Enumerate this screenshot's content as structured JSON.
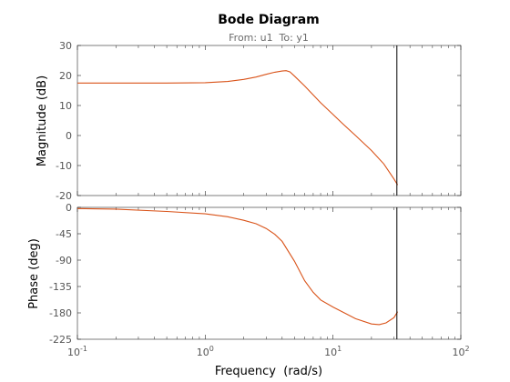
{
  "chart_data": [
    {
      "type": "line",
      "panel": "magnitude",
      "title": "Bode Diagram",
      "subtitle": "From: u1  To: y1",
      "ylabel": "Magnitude (dB)",
      "xlabel": "",
      "xscale": "log",
      "xlim": [
        0.1,
        100
      ],
      "ylim": [
        -20,
        30
      ],
      "yticks": [
        "30",
        "20",
        "10",
        "0",
        "-10",
        "-20"
      ],
      "grid": false,
      "marker_x": 31.6,
      "series": [
        {
          "color": "#d95319",
          "x": [
            0.1,
            0.2,
            0.5,
            1,
            1.5,
            2,
            2.5,
            3,
            3.5,
            4,
            4.3,
            4.6,
            5,
            6,
            7,
            8,
            10,
            12,
            15,
            20,
            25,
            30,
            32
          ],
          "values": [
            17.5,
            17.5,
            17.5,
            17.6,
            18.0,
            18.7,
            19.5,
            20.4,
            21.1,
            21.5,
            21.6,
            21.2,
            19.8,
            16.5,
            13.5,
            10.9,
            7.0,
            3.8,
            0.0,
            -5.0,
            -9.5,
            -14.5,
            -16.5
          ]
        }
      ]
    },
    {
      "type": "line",
      "panel": "phase",
      "ylabel": "Phase (deg)",
      "xlabel": "Frequency  (rad/s)",
      "xscale": "log",
      "xlim": [
        0.1,
        100
      ],
      "ylim": [
        -225,
        0
      ],
      "yticks": [
        "0",
        "-45",
        "-90",
        "-135",
        "-180",
        "-225"
      ],
      "xticks": [
        {
          "base": "10",
          "exp": "-1"
        },
        {
          "base": "10",
          "exp": "0"
        },
        {
          "base": "10",
          "exp": "1"
        },
        {
          "base": "10",
          "exp": "2"
        }
      ],
      "grid": false,
      "marker_x": 31.6,
      "series": [
        {
          "color": "#d95319",
          "x": [
            0.1,
            0.2,
            0.5,
            1,
            1.5,
            2,
            2.5,
            3,
            3.5,
            4,
            5,
            6,
            7,
            8,
            10,
            15,
            20,
            23,
            26,
            30,
            32
          ],
          "values": [
            -2,
            -3,
            -7,
            -11,
            -16,
            -22,
            -28,
            -36,
            -46,
            -58,
            -92,
            -125,
            -145,
            -158,
            -170,
            -190,
            -199,
            -200,
            -197,
            -188,
            -178
          ]
        }
      ]
    }
  ]
}
